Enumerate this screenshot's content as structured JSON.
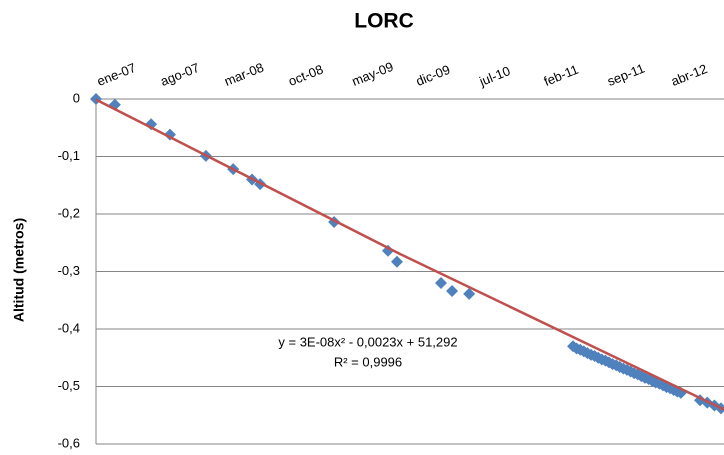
{
  "chart_data": {
    "type": "scatter",
    "title": "LORC",
    "y_label": "Altitud (metros)",
    "x": [
      39083,
      39146,
      39267,
      39330,
      39450,
      39541,
      39604,
      39631,
      39878,
      40058,
      40088,
      40235,
      40272,
      40329,
      40676,
      40688,
      40700,
      40712,
      40724,
      40736,
      40748,
      40760,
      40772,
      40784,
      40796,
      40808,
      40820,
      40832,
      40844,
      40856,
      40868,
      40880,
      40892,
      40904,
      40916,
      40928,
      40940,
      40952,
      40964,
      40976,
      40988,
      41000,
      41012,
      41024,
      41036,
      41100,
      41124,
      41148,
      41170
    ],
    "values": [
      0,
      -0.01,
      -0.044,
      -0.062,
      -0.099,
      -0.122,
      -0.14,
      -0.148,
      -0.214,
      -0.264,
      -0.283,
      -0.32,
      -0.334,
      -0.339,
      -0.43,
      -0.434,
      -0.436,
      -0.439,
      -0.442,
      -0.445,
      -0.447,
      -0.45,
      -0.453,
      -0.455,
      -0.458,
      -0.461,
      -0.463,
      -0.466,
      -0.469,
      -0.471,
      -0.474,
      -0.477,
      -0.479,
      -0.482,
      -0.485,
      -0.487,
      -0.49,
      -0.493,
      -0.495,
      -0.498,
      -0.501,
      -0.503,
      -0.506,
      -0.509,
      -0.511,
      -0.524,
      -0.528,
      -0.533,
      -0.538
    ],
    "color": "#4f81bd",
    "trendline": {
      "x": [
        39083,
        40100,
        41180
      ],
      "values": [
        -0.001,
        -0.27,
        -0.54
      ],
      "color": "#c0504d"
    },
    "annotations": [
      "y = 3E-08x² - 0,0023x + 51,292",
      "R² = 0,9996"
    ],
    "xlim": [
      39083,
      41180
    ],
    "xticks": [
      {
        "value": 39083,
        "label": "ene-07"
      },
      {
        "value": 39295,
        "label": "ago-07"
      },
      {
        "value": 39508,
        "label": "mar-08"
      },
      {
        "value": 39722,
        "label": "oct-08"
      },
      {
        "value": 39934,
        "label": "may-09"
      },
      {
        "value": 40148,
        "label": "dic-09"
      },
      {
        "value": 40360,
        "label": "jul-10"
      },
      {
        "value": 40575,
        "label": "feb-11"
      },
      {
        "value": 40787,
        "label": "sep-11"
      },
      {
        "value": 41000,
        "label": "abr-12"
      }
    ],
    "ylim": [
      -0.6,
      0
    ],
    "yticks": [
      0,
      {
        "value": -0.1,
        "label": "-0,1"
      },
      {
        "value": -0.2,
        "label": "-0,2"
      },
      {
        "value": -0.3,
        "label": "-0,3"
      },
      {
        "value": -0.4,
        "label": "-0,4"
      },
      {
        "value": -0.5,
        "label": "-0,5"
      },
      {
        "value": -0.6,
        "label": "-0,6"
      }
    ],
    "grid": true
  }
}
